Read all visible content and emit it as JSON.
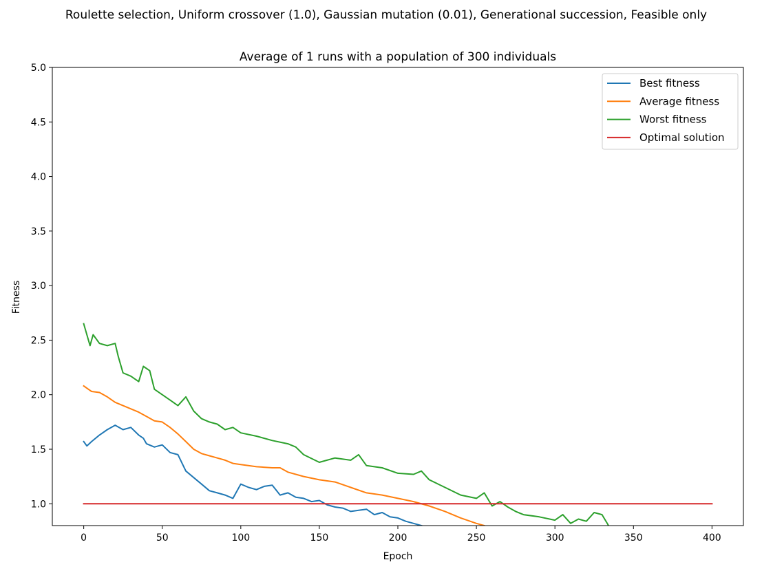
{
  "chart_data": {
    "type": "line",
    "suptitle": "Roulette selection, Uniform crossover (1.0), Gaussian mutation (0.01), Generational succession, Feasible only",
    "title": "Average of 1 runs with a population of 300 individuals",
    "xlabel": "Epoch",
    "ylabel": "Fitness",
    "xlim": [
      -20,
      420
    ],
    "ylim": [
      0.8,
      5.0
    ],
    "xticks": [
      0,
      50,
      100,
      150,
      200,
      250,
      300,
      350,
      400
    ],
    "xtick_labels": [
      "0",
      "50",
      "100",
      "150",
      "200",
      "250",
      "300",
      "350",
      "400"
    ],
    "yticks": [
      1.0,
      1.5,
      2.0,
      2.5,
      3.0,
      3.5,
      4.0,
      4.5,
      5.0
    ],
    "ytick_labels": [
      "1.0",
      "1.5",
      "2.0",
      "2.5",
      "3.0",
      "3.5",
      "4.0",
      "4.5",
      "5.0"
    ],
    "grid": false,
    "legend_position": "top-right",
    "series": [
      {
        "name": "Best fitness",
        "color": "#1f77b4",
        "x": [
          0,
          2,
          5,
          10,
          15,
          20,
          25,
          30,
          35,
          38,
          40,
          45,
          50,
          55,
          60,
          65,
          70,
          75,
          80,
          85,
          90,
          95,
          100,
          105,
          110,
          115,
          120,
          125,
          130,
          135,
          140,
          145,
          150,
          155,
          160,
          165,
          170,
          175,
          180,
          185,
          190,
          195,
          200,
          205,
          210,
          215,
          220
        ],
        "values": [
          1.57,
          1.53,
          1.57,
          1.63,
          1.68,
          1.72,
          1.68,
          1.7,
          1.63,
          1.6,
          1.55,
          1.52,
          1.54,
          1.47,
          1.45,
          1.3,
          1.24,
          1.18,
          1.12,
          1.1,
          1.08,
          1.05,
          1.18,
          1.15,
          1.13,
          1.16,
          1.17,
          1.08,
          1.1,
          1.06,
          1.05,
          1.02,
          1.03,
          0.99,
          0.97,
          0.96,
          0.93,
          0.94,
          0.95,
          0.9,
          0.92,
          0.88,
          0.87,
          0.84,
          0.82,
          0.8,
          0.78
        ]
      },
      {
        "name": "Average fitness",
        "color": "#ff7f0e",
        "x": [
          0,
          5,
          10,
          15,
          20,
          25,
          30,
          35,
          40,
          45,
          50,
          55,
          60,
          65,
          70,
          75,
          80,
          85,
          90,
          95,
          100,
          110,
          120,
          125,
          130,
          140,
          150,
          160,
          170,
          180,
          190,
          200,
          210,
          220,
          230,
          240,
          250,
          255
        ],
        "values": [
          2.08,
          2.03,
          2.02,
          1.98,
          1.93,
          1.9,
          1.87,
          1.84,
          1.8,
          1.76,
          1.75,
          1.7,
          1.64,
          1.57,
          1.5,
          1.46,
          1.44,
          1.42,
          1.4,
          1.37,
          1.36,
          1.34,
          1.33,
          1.33,
          1.29,
          1.25,
          1.22,
          1.2,
          1.15,
          1.1,
          1.08,
          1.05,
          1.02,
          0.98,
          0.93,
          0.87,
          0.82,
          0.8
        ]
      },
      {
        "name": "Worst fitness",
        "color": "#2ca02c",
        "x": [
          0,
          2,
          4,
          6,
          10,
          15,
          20,
          22,
          25,
          30,
          35,
          38,
          42,
          45,
          50,
          55,
          60,
          65,
          70,
          75,
          80,
          85,
          90,
          95,
          100,
          110,
          120,
          130,
          135,
          140,
          150,
          160,
          170,
          175,
          180,
          190,
          200,
          210,
          215,
          220,
          230,
          240,
          250,
          255,
          260,
          265,
          270,
          275,
          280,
          290,
          300,
          305,
          310,
          315,
          320,
          325,
          330,
          335
        ],
        "values": [
          2.65,
          2.55,
          2.45,
          2.55,
          2.47,
          2.45,
          2.47,
          2.35,
          2.2,
          2.17,
          2.12,
          2.26,
          2.22,
          2.05,
          2.0,
          1.95,
          1.9,
          1.98,
          1.85,
          1.78,
          1.75,
          1.73,
          1.68,
          1.7,
          1.65,
          1.62,
          1.58,
          1.55,
          1.52,
          1.45,
          1.38,
          1.42,
          1.4,
          1.45,
          1.35,
          1.33,
          1.28,
          1.27,
          1.3,
          1.22,
          1.15,
          1.08,
          1.05,
          1.1,
          0.98,
          1.02,
          0.97,
          0.93,
          0.9,
          0.88,
          0.85,
          0.9,
          0.82,
          0.86,
          0.84,
          0.92,
          0.9,
          0.78
        ]
      },
      {
        "name": "Optimal solution",
        "color": "#d62728",
        "x": [
          0,
          400
        ],
        "values": [
          1.0,
          1.0
        ]
      }
    ]
  }
}
